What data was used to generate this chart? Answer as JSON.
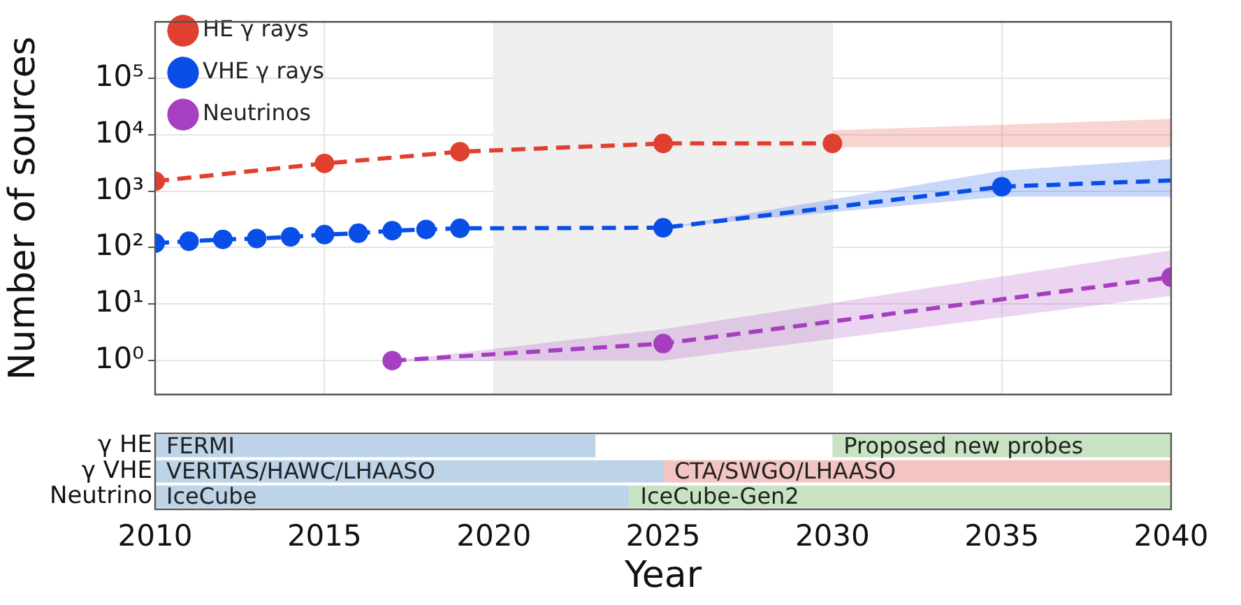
{
  "chart_data": [
    {
      "type": "line",
      "ylabel": "Number of sources",
      "log": "y",
      "grid": true,
      "legend": "top left",
      "tick_labels": "y",
      "line_style": "dashed",
      "marker": "circle",
      "xlim": [
        2010,
        2040
      ],
      "xticks": [
        2010,
        2015,
        2020,
        2025,
        2030,
        2035,
        2040
      ],
      "ylim": [
        0.25,
        1000000
      ],
      "yticks": [
        {
          "value": 1,
          "label": "10⁰"
        },
        {
          "value": 10,
          "label": "10¹"
        },
        {
          "value": 100,
          "label": "10²"
        },
        {
          "value": 1000,
          "label": "10³"
        },
        {
          "value": 10000,
          "label": "10⁴"
        },
        {
          "value": 100000,
          "label": "10⁵"
        }
      ],
      "bands": [
        {
          "axis": "x",
          "from": 2020,
          "to": 2030,
          "color": "#efefef"
        }
      ],
      "series": [
        {
          "name": "HE γ rays",
          "color": "#e0402f",
          "x": [
            2010,
            2015,
            2019,
            2025,
            2030,
            2035,
            2040
          ],
          "values": [
            1500,
            3100,
            5000,
            7000,
            7000,
            null,
            null
          ],
          "lower": [
            null,
            null,
            null,
            null,
            6000,
            6000,
            6000
          ],
          "upper": [
            null,
            null,
            null,
            null,
            12000,
            15000,
            19000
          ]
        },
        {
          "name": "VHE γ rays",
          "color": "#0a4ee8",
          "x": [
            2010,
            2011,
            2012,
            2013,
            2014,
            2015,
            2016,
            2017,
            2018,
            2019,
            2025,
            2035
          ],
          "values": [
            120,
            130,
            140,
            145,
            155,
            170,
            180,
            200,
            210,
            220,
            225,
            1200
          ],
          "lower": [
            null,
            null,
            null,
            null,
            null,
            null,
            null,
            null,
            null,
            null,
            225,
            800
          ],
          "upper": [
            null,
            null,
            null,
            null,
            null,
            null,
            null,
            null,
            null,
            null,
            225,
            2300
          ]
        },
        {
          "color": "#0a4ee8",
          "marker": "none",
          "x": [
            2035,
            2040
          ],
          "values": [
            1200,
            1550
          ],
          "lower": [
            800,
            800
          ],
          "upper": [
            2300,
            3700
          ]
        },
        {
          "name": "Neutrinos",
          "color": "#a63fc0",
          "x": [
            2017,
            2025,
            2040
          ],
          "values": [
            1,
            2,
            30
          ],
          "lower": [
            1,
            1,
            14
          ],
          "upper": [
            1,
            3.6,
            90
          ]
        }
      ]
    },
    {
      "type": "bar",
      "orientation": "horizontal",
      "xlabel": "Year",
      "xlim": [
        2010,
        2040
      ],
      "xticks": [
        2010,
        2015,
        2020,
        2025,
        2030,
        2035,
        2040
      ],
      "categories": [
        "γ HE",
        "γ VHE",
        "Neutrino"
      ],
      "series": [
        {
          "colors": [
            "#bcd3e8",
            "#bcd3e8",
            "#bcd3e8"
          ],
          "base": [
            2010,
            2010,
            2010
          ],
          "values": [
            13,
            15,
            14
          ]
        },
        {
          "colors": [
            "#c8e3c2",
            "#f2c4c2",
            "#c8e3c2"
          ],
          "base": [
            2030,
            2025,
            2024
          ],
          "values": [
            10,
            15,
            16
          ]
        }
      ],
      "annotations": [
        {
          "text": "FERMI",
          "x": 2010,
          "y": "γ HE"
        },
        {
          "text": "Proposed new probes",
          "x": 2030,
          "y": "γ HE"
        },
        {
          "text": "VERITAS/HAWC/LHAASO",
          "x": 2010,
          "y": "γ VHE"
        },
        {
          "text": "CTA/SWGO/LHAASO",
          "x": 2025,
          "y": "γ VHE"
        },
        {
          "text": "IceCube",
          "x": 2010,
          "y": "Neutrino"
        },
        {
          "text": "IceCube-Gen2",
          "x": 2024,
          "y": "Neutrino"
        }
      ]
    }
  ]
}
